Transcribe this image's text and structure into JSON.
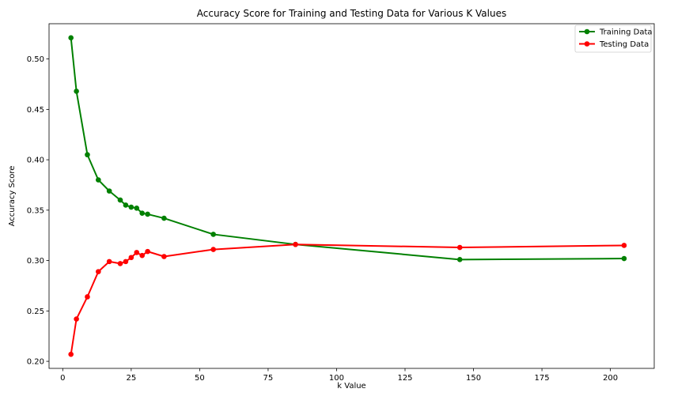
{
  "chart_data": {
    "type": "line",
    "title": "Accuracy Score for Training and Testing Data for Various K Values",
    "xlabel": "k Value",
    "ylabel": "Accuracy Score",
    "xlim": [
      -5,
      216
    ],
    "ylim": [
      0.193,
      0.535
    ],
    "x_ticks": [
      0,
      25,
      50,
      75,
      100,
      125,
      150,
      175,
      200
    ],
    "y_ticks": [
      0.2,
      0.25,
      0.3,
      0.35,
      0.4,
      0.45,
      0.5
    ],
    "x_tick_labels": [
      "0",
      "25",
      "50",
      "75",
      "100",
      "125",
      "150",
      "175",
      "200"
    ],
    "y_tick_labels": [
      "0.20",
      "0.25",
      "0.30",
      "0.35",
      "0.40",
      "0.45",
      "0.50"
    ],
    "grid": false,
    "legend_position": "top-right",
    "x": [
      3,
      5,
      9,
      13,
      17,
      21,
      23,
      25,
      27,
      29,
      31,
      37,
      55,
      85,
      145,
      205
    ],
    "series": [
      {
        "name": "Training Data",
        "color": "#008000",
        "values": [
          0.521,
          0.468,
          0.405,
          0.38,
          0.369,
          0.36,
          0.355,
          0.353,
          0.352,
          0.347,
          0.346,
          0.342,
          0.326,
          0.316,
          0.301,
          0.302
        ]
      },
      {
        "name": "Testing Data",
        "color": "#ff0000",
        "values": [
          0.207,
          0.242,
          0.264,
          0.289,
          0.299,
          0.297,
          0.299,
          0.303,
          0.308,
          0.305,
          0.309,
          0.304,
          0.311,
          0.316,
          0.313,
          0.315
        ]
      }
    ]
  }
}
